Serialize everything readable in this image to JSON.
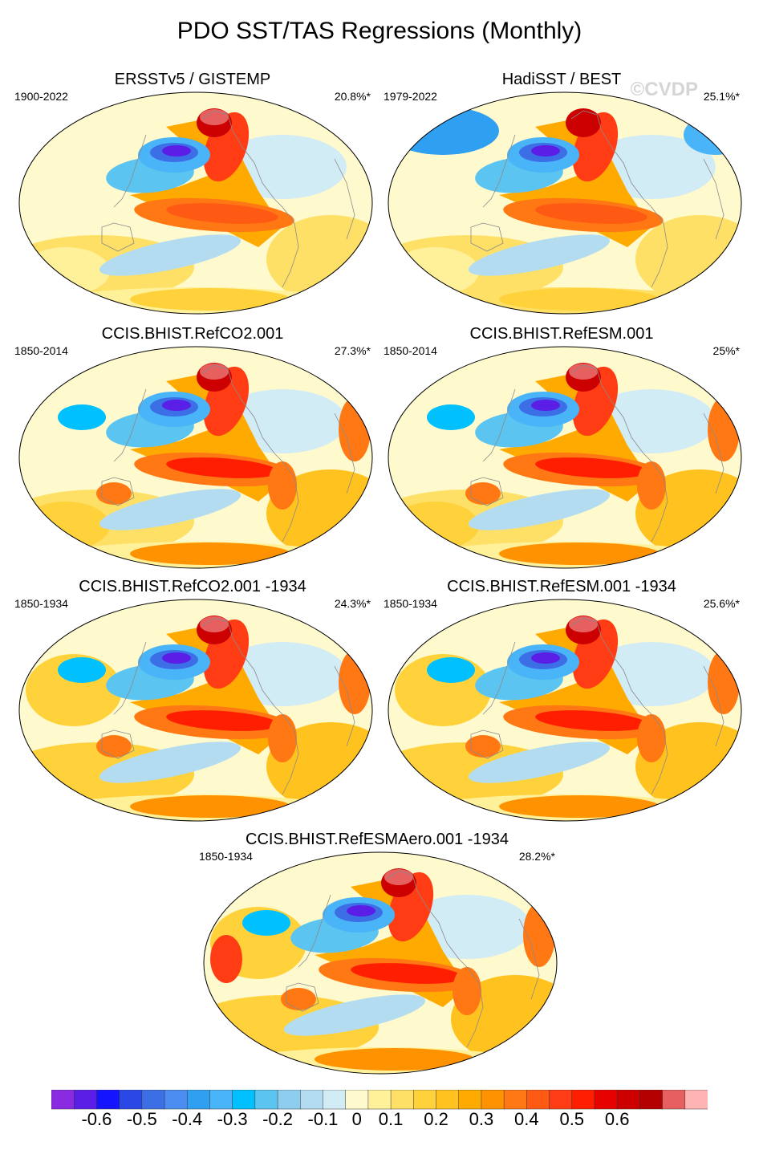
{
  "figure_title": "PDO SST/TAS Regressions (Monthly)",
  "watermark": "©CVDP",
  "panels": [
    {
      "title": "ERSSTv5 / GISTEMP",
      "years": "1900-2022",
      "pct": "20.8%*"
    },
    {
      "title": "HadiSST / BEST",
      "years": "1979-2022",
      "pct": "25.1%*"
    },
    {
      "title": "CCIS.BHIST.RefCO2.001",
      "years": "1850-2014",
      "pct": "27.3%*"
    },
    {
      "title": "CCIS.BHIST.RefESM.001",
      "years": "1850-2014",
      "pct": "25%*"
    },
    {
      "title": "CCIS.BHIST.RefCO2.001 -1934",
      "years": "1850-1934",
      "pct": "24.3%*"
    },
    {
      "title": "CCIS.BHIST.RefESM.001 -1934",
      "years": "1850-1934",
      "pct": "25.6%*"
    },
    {
      "title": "CCIS.BHIST.RefESMAero.001 -1934",
      "years": "1850-1934",
      "pct": "28.2%*"
    }
  ],
  "colorbar": {
    "tick_labels": [
      "-0.6",
      "-0.5",
      "-0.4",
      "-0.3",
      "-0.2",
      "-0.1",
      "0",
      "0.1",
      "0.2",
      "0.3",
      "0.4",
      "0.5",
      "0.6"
    ],
    "colors": [
      "#8a2be2",
      "#5a1ee6",
      "#1414ff",
      "#2a48e6",
      "#3c6ee6",
      "#4a8cf0",
      "#2f9ff2",
      "#4ab4f8",
      "#00c0ff",
      "#5cc4f0",
      "#8ecdee",
      "#b4dcf0",
      "#d2ecf5",
      "#fffacd",
      "#fff09a",
      "#ffe066",
      "#ffd23c",
      "#ffc21e",
      "#ffaa00",
      "#ff9200",
      "#ff7814",
      "#ff5a14",
      "#ff3c14",
      "#ff1e00",
      "#e60000",
      "#cc0000",
      "#b40000",
      "#e66060",
      "#ffb4b4"
    ]
  },
  "chart_data": {
    "type": "heatmap",
    "title": "PDO SST/TAS Regressions (Monthly)",
    "colorbar_range": [
      -0.6,
      0.6
    ],
    "colorbar_ticks": [
      -0.6,
      -0.5,
      -0.4,
      -0.3,
      -0.2,
      -0.1,
      0,
      0.1,
      0.2,
      0.3,
      0.4,
      0.5,
      0.6
    ],
    "projection": "global map (Robinson-like)",
    "panels": [
      {
        "title": "ERSSTv5 / GISTEMP",
        "years": "1900-2022",
        "variance": "20.8%*"
      },
      {
        "title": "HadiSST / BEST",
        "years": "1979-2022",
        "variance": "25.1%*"
      },
      {
        "title": "CCIS.BHIST.RefCO2.001",
        "years": "1850-2014",
        "variance": "27.3%*"
      },
      {
        "title": "CCIS.BHIST.RefESM.001",
        "years": "1850-2014",
        "variance": "25%*"
      },
      {
        "title": "CCIS.BHIST.RefCO2.001 -1934",
        "years": "1850-1934",
        "variance": "24.3%*"
      },
      {
        "title": "CCIS.BHIST.RefESM.001 -1934",
        "years": "1850-1934",
        "variance": "25.6%*"
      },
      {
        "title": "CCIS.BHIST.RefESMAero.001 -1934",
        "years": "1850-1934",
        "variance": "28.2%*"
      }
    ]
  }
}
